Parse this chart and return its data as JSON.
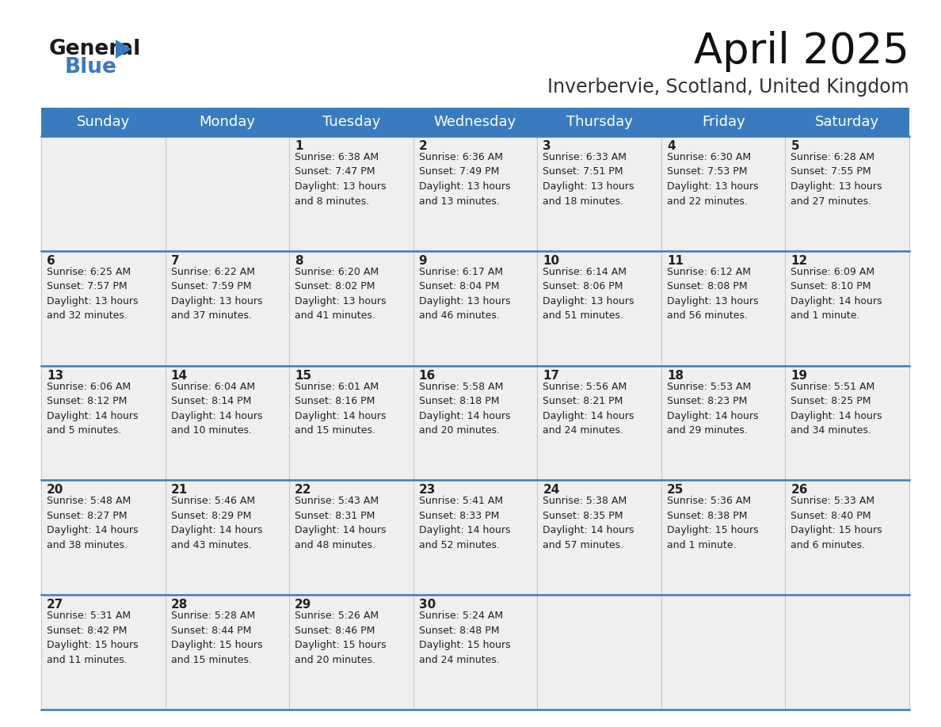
{
  "title": "April 2025",
  "subtitle": "Inverbervie, Scotland, United Kingdom",
  "header_color": "#3a7bbf",
  "header_text_color": "#ffffff",
  "cell_bg_color": "#efefef",
  "border_color": "#3a7bbf",
  "text_color": "#222222",
  "days_of_week": [
    "Sunday",
    "Monday",
    "Tuesday",
    "Wednesday",
    "Thursday",
    "Friday",
    "Saturday"
  ],
  "logo_general_color": "#1a1a1a",
  "logo_blue_color": "#3a7bbf",
  "title_fontsize": 38,
  "subtitle_fontsize": 17,
  "header_fontsize": 13,
  "day_num_fontsize": 11,
  "info_fontsize": 9,
  "weeks": [
    [
      {
        "day": "",
        "info": ""
      },
      {
        "day": "",
        "info": ""
      },
      {
        "day": "1",
        "info": "Sunrise: 6:38 AM\nSunset: 7:47 PM\nDaylight: 13 hours\nand 8 minutes."
      },
      {
        "day": "2",
        "info": "Sunrise: 6:36 AM\nSunset: 7:49 PM\nDaylight: 13 hours\nand 13 minutes."
      },
      {
        "day": "3",
        "info": "Sunrise: 6:33 AM\nSunset: 7:51 PM\nDaylight: 13 hours\nand 18 minutes."
      },
      {
        "day": "4",
        "info": "Sunrise: 6:30 AM\nSunset: 7:53 PM\nDaylight: 13 hours\nand 22 minutes."
      },
      {
        "day": "5",
        "info": "Sunrise: 6:28 AM\nSunset: 7:55 PM\nDaylight: 13 hours\nand 27 minutes."
      }
    ],
    [
      {
        "day": "6",
        "info": "Sunrise: 6:25 AM\nSunset: 7:57 PM\nDaylight: 13 hours\nand 32 minutes."
      },
      {
        "day": "7",
        "info": "Sunrise: 6:22 AM\nSunset: 7:59 PM\nDaylight: 13 hours\nand 37 minutes."
      },
      {
        "day": "8",
        "info": "Sunrise: 6:20 AM\nSunset: 8:02 PM\nDaylight: 13 hours\nand 41 minutes."
      },
      {
        "day": "9",
        "info": "Sunrise: 6:17 AM\nSunset: 8:04 PM\nDaylight: 13 hours\nand 46 minutes."
      },
      {
        "day": "10",
        "info": "Sunrise: 6:14 AM\nSunset: 8:06 PM\nDaylight: 13 hours\nand 51 minutes."
      },
      {
        "day": "11",
        "info": "Sunrise: 6:12 AM\nSunset: 8:08 PM\nDaylight: 13 hours\nand 56 minutes."
      },
      {
        "day": "12",
        "info": "Sunrise: 6:09 AM\nSunset: 8:10 PM\nDaylight: 14 hours\nand 1 minute."
      }
    ],
    [
      {
        "day": "13",
        "info": "Sunrise: 6:06 AM\nSunset: 8:12 PM\nDaylight: 14 hours\nand 5 minutes."
      },
      {
        "day": "14",
        "info": "Sunrise: 6:04 AM\nSunset: 8:14 PM\nDaylight: 14 hours\nand 10 minutes."
      },
      {
        "day": "15",
        "info": "Sunrise: 6:01 AM\nSunset: 8:16 PM\nDaylight: 14 hours\nand 15 minutes."
      },
      {
        "day": "16",
        "info": "Sunrise: 5:58 AM\nSunset: 8:18 PM\nDaylight: 14 hours\nand 20 minutes."
      },
      {
        "day": "17",
        "info": "Sunrise: 5:56 AM\nSunset: 8:21 PM\nDaylight: 14 hours\nand 24 minutes."
      },
      {
        "day": "18",
        "info": "Sunrise: 5:53 AM\nSunset: 8:23 PM\nDaylight: 14 hours\nand 29 minutes."
      },
      {
        "day": "19",
        "info": "Sunrise: 5:51 AM\nSunset: 8:25 PM\nDaylight: 14 hours\nand 34 minutes."
      }
    ],
    [
      {
        "day": "20",
        "info": "Sunrise: 5:48 AM\nSunset: 8:27 PM\nDaylight: 14 hours\nand 38 minutes."
      },
      {
        "day": "21",
        "info": "Sunrise: 5:46 AM\nSunset: 8:29 PM\nDaylight: 14 hours\nand 43 minutes."
      },
      {
        "day": "22",
        "info": "Sunrise: 5:43 AM\nSunset: 8:31 PM\nDaylight: 14 hours\nand 48 minutes."
      },
      {
        "day": "23",
        "info": "Sunrise: 5:41 AM\nSunset: 8:33 PM\nDaylight: 14 hours\nand 52 minutes."
      },
      {
        "day": "24",
        "info": "Sunrise: 5:38 AM\nSunset: 8:35 PM\nDaylight: 14 hours\nand 57 minutes."
      },
      {
        "day": "25",
        "info": "Sunrise: 5:36 AM\nSunset: 8:38 PM\nDaylight: 15 hours\nand 1 minute."
      },
      {
        "day": "26",
        "info": "Sunrise: 5:33 AM\nSunset: 8:40 PM\nDaylight: 15 hours\nand 6 minutes."
      }
    ],
    [
      {
        "day": "27",
        "info": "Sunrise: 5:31 AM\nSunset: 8:42 PM\nDaylight: 15 hours\nand 11 minutes."
      },
      {
        "day": "28",
        "info": "Sunrise: 5:28 AM\nSunset: 8:44 PM\nDaylight: 15 hours\nand 15 minutes."
      },
      {
        "day": "29",
        "info": "Sunrise: 5:26 AM\nSunset: 8:46 PM\nDaylight: 15 hours\nand 20 minutes."
      },
      {
        "day": "30",
        "info": "Sunrise: 5:24 AM\nSunset: 8:48 PM\nDaylight: 15 hours\nand 24 minutes."
      },
      {
        "day": "",
        "info": ""
      },
      {
        "day": "",
        "info": ""
      },
      {
        "day": "",
        "info": ""
      }
    ]
  ]
}
